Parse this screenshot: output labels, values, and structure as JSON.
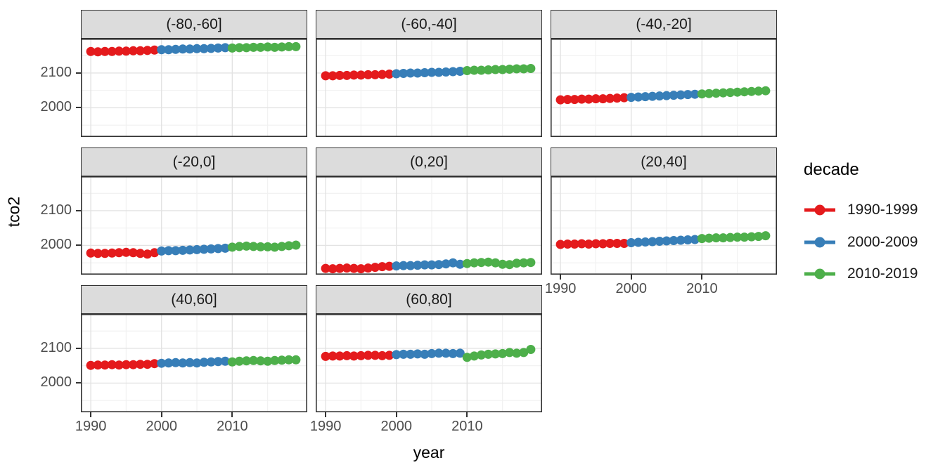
{
  "chart_data": {
    "type": "scatter",
    "title": "",
    "xlabel": "year",
    "ylabel": "tco2",
    "x": [
      1990,
      1991,
      1992,
      1993,
      1994,
      1995,
      1996,
      1997,
      1998,
      1999,
      2000,
      2001,
      2002,
      2003,
      2004,
      2005,
      2006,
      2007,
      2008,
      2009,
      2010,
      2011,
      2012,
      2013,
      2014,
      2015,
      2016,
      2017,
      2018,
      2019
    ],
    "xlim": [
      1988.6,
      2020.6
    ],
    "ylim": [
      1916,
      2199
    ],
    "x_ticks": [
      1990,
      2000,
      2010
    ],
    "y_ticks": [
      2000,
      2100
    ],
    "x_minor": [
      1995,
      2005,
      2015
    ],
    "y_minor": [
      1950,
      2050,
      2150
    ],
    "grid": true,
    "legend": {
      "title": "decade",
      "position": "right",
      "entries": [
        {
          "label": "1990-1999",
          "color": "#E41A1C"
        },
        {
          "label": "2000-2009",
          "color": "#377EB8"
        },
        {
          "label": "2010-2019",
          "color": "#4DAF4A"
        }
      ]
    },
    "facets": [
      {
        "label": "(-80,-60]",
        "values": [
          2162,
          2161,
          2162,
          2162,
          2163,
          2163,
          2164,
          2164,
          2165,
          2166,
          2167,
          2167,
          2168,
          2169,
          2169,
          2170,
          2170,
          2171,
          2172,
          2173,
          2172,
          2173,
          2173,
          2174,
          2174,
          2175,
          2174,
          2175,
          2176,
          2176
        ]
      },
      {
        "label": "(-60,-40]",
        "values": [
          2092,
          2092,
          2093,
          2093,
          2094,
          2094,
          2095,
          2095,
          2096,
          2097,
          2098,
          2099,
          2100,
          2100,
          2101,
          2102,
          2102,
          2103,
          2104,
          2105,
          2107,
          2108,
          2108,
          2109,
          2110,
          2110,
          2111,
          2112,
          2112,
          2113
        ]
      },
      {
        "label": "(-40,-20]",
        "values": [
          2023,
          2024,
          2024,
          2025,
          2025,
          2026,
          2026,
          2027,
          2028,
          2029,
          2030,
          2031,
          2032,
          2033,
          2034,
          2035,
          2036,
          2037,
          2038,
          2039,
          2040,
          2041,
          2042,
          2043,
          2044,
          2045,
          2046,
          2047,
          2048,
          2049
        ]
      },
      {
        "label": "(-20,0]",
        "values": [
          1978,
          1977,
          1977,
          1978,
          1979,
          1980,
          1979,
          1977,
          1975,
          1979,
          1984,
          1985,
          1985,
          1986,
          1987,
          1988,
          1989,
          1990,
          1991,
          1992,
          1995,
          1997,
          1998,
          1997,
          1996,
          1996,
          1995,
          1997,
          1999,
          2001
        ]
      },
      {
        "label": "(0,20]",
        "values": [
          1934,
          1933,
          1934,
          1935,
          1934,
          1933,
          1935,
          1937,
          1939,
          1940,
          1941,
          1942,
          1942,
          1943,
          1944,
          1944,
          1945,
          1947,
          1950,
          1946,
          1948,
          1950,
          1951,
          1952,
          1950,
          1946,
          1945,
          1949,
          1950,
          1951
        ]
      },
      {
        "label": "(20,40]",
        "values": [
          2003,
          2004,
          2004,
          2005,
          2004,
          2005,
          2005,
          2006,
          2006,
          2006,
          2008,
          2009,
          2010,
          2011,
          2012,
          2013,
          2014,
          2015,
          2016,
          2017,
          2020,
          2021,
          2022,
          2022,
          2023,
          2024,
          2024,
          2025,
          2026,
          2028
        ]
      },
      {
        "label": "(40,60]",
        "values": [
          2051,
          2052,
          2052,
          2053,
          2052,
          2053,
          2053,
          2054,
          2054,
          2056,
          2057,
          2058,
          2059,
          2058,
          2059,
          2058,
          2060,
          2061,
          2062,
          2063,
          2061,
          2063,
          2064,
          2065,
          2064,
          2063,
          2065,
          2066,
          2067,
          2067
        ]
      },
      {
        "label": "(60,80]",
        "values": [
          2077,
          2078,
          2078,
          2079,
          2078,
          2079,
          2080,
          2080,
          2079,
          2080,
          2082,
          2083,
          2083,
          2084,
          2083,
          2085,
          2086,
          2086,
          2085,
          2086,
          2074,
          2078,
          2081,
          2083,
          2084,
          2085,
          2088,
          2086,
          2088,
          2097
        ]
      }
    ]
  },
  "colors": {
    "strip_fill": "#DCDCDC",
    "panel_border": "#333333",
    "grid_major": "#E3E3E3",
    "grid_minor": "#F1F1F1",
    "tick_text": "#4d4d4d"
  }
}
